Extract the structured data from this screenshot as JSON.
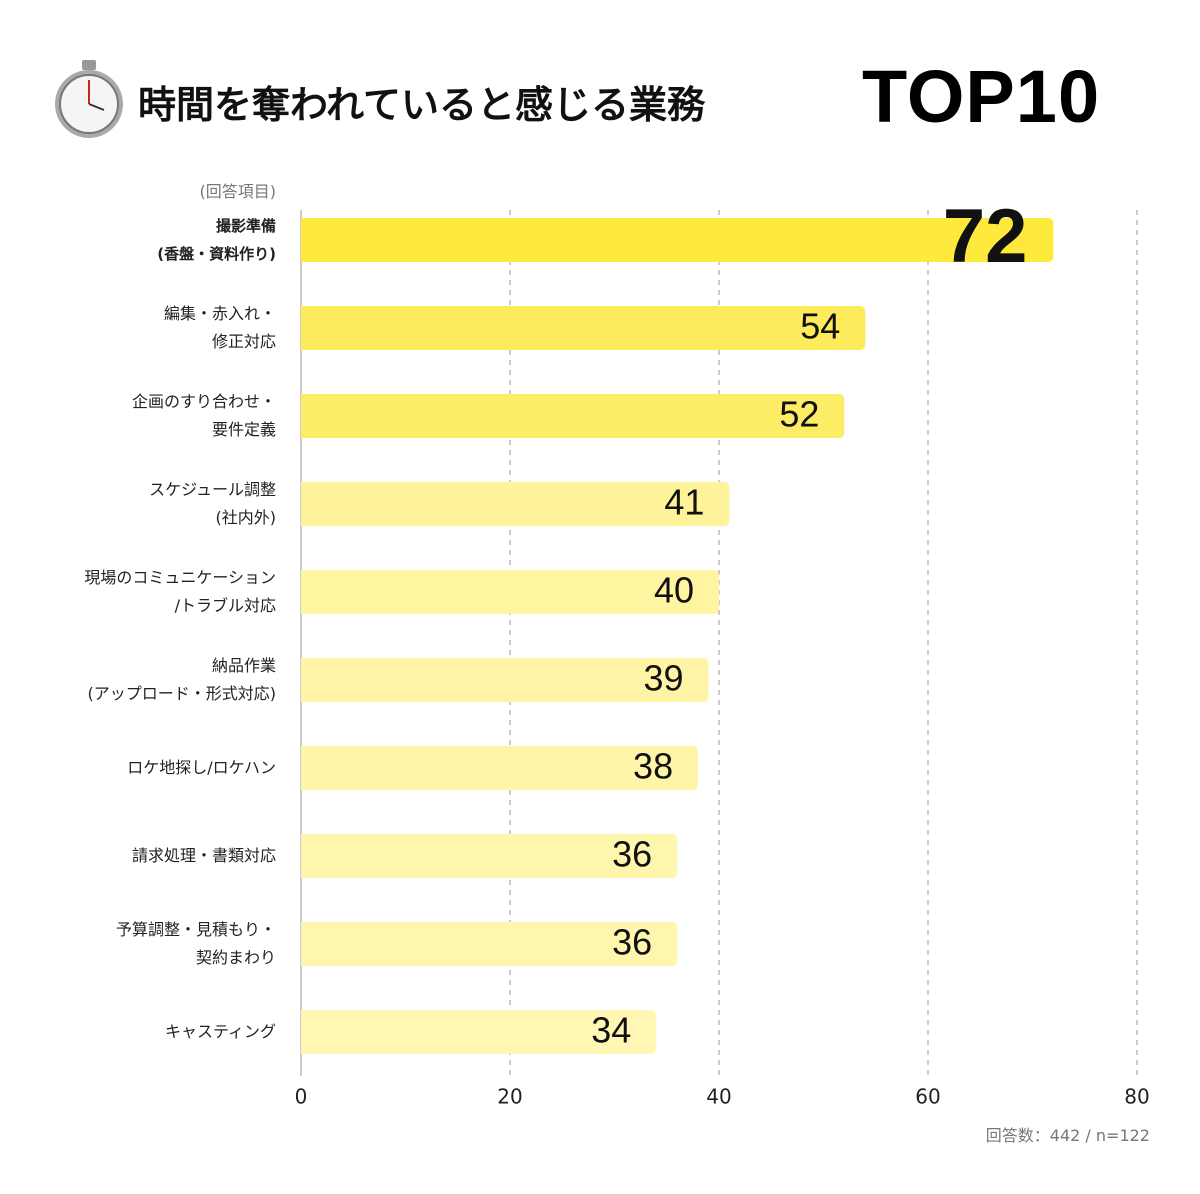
{
  "chart_data": {
    "type": "bar",
    "orientation": "horizontal",
    "title": "時間を奪われていると感じる業務",
    "title_emphasis": "TOP10",
    "y_label": "(回答項目)",
    "categories": [
      "撮影準備\n(香盤・資料作り)",
      "編集・赤入れ・\n修正対応",
      "企画のすり合わせ・\n要件定義",
      "スケジュール調整\n(社内外)",
      "現場のコミュニケーション\n/トラブル対応",
      "納品作業\n(アップロード・形式対応)",
      "ロケ地探し/ロケハン",
      "請求処理・書類対応",
      "予算調整・見積もり・\n契約まわり",
      "キャスティング"
    ],
    "values": [
      72,
      54,
      52,
      41,
      40,
      39,
      38,
      36,
      36,
      34
    ],
    "colors": [
      "#ffe93c",
      "#fdeb5c",
      "#fdec66",
      "#fff39a",
      "#fff4a0",
      "#fff4a5",
      "#fff5a9",
      "#fff6ae",
      "#fff6ae",
      "#fff7b3"
    ],
    "xlim": [
      0,
      80
    ],
    "xticks": [
      0,
      20,
      40,
      60,
      80
    ],
    "grid": true,
    "note": "回答数：442 / n=122"
  }
}
